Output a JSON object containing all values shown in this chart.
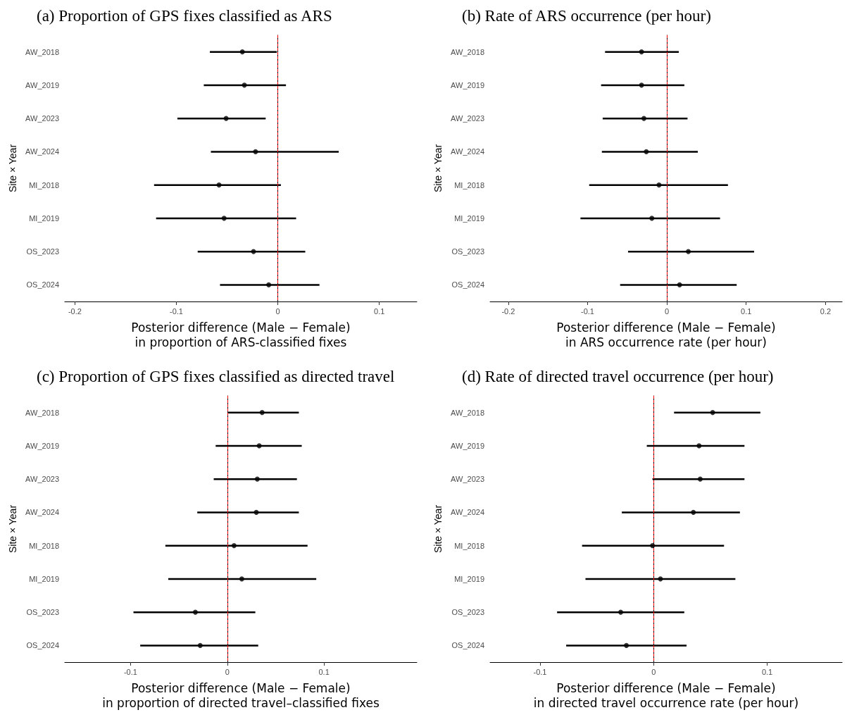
{
  "chart_data": [
    {
      "type": "scatter",
      "orientation": "horizontal",
      "title": "(a) Proportion of GPS fixes classified as ARS",
      "xlabel": "Posterior difference (Male − Female)\nin proportion of ARS-classified fixes",
      "ylabel": "Site × Year",
      "categories": [
        "AW_2018",
        "AW_2019",
        "AW_2023",
        "AW_2024",
        "MI_2018",
        "MI_2019",
        "OS_2023",
        "OS_2024"
      ],
      "series": [
        {
          "color": "#000000",
          "values": [
            -0.035,
            -0.033,
            -0.051,
            -0.022,
            -0.058,
            -0.053,
            -0.024,
            -0.009
          ],
          "errors": [
            [
              -0.067,
              -0.001
            ],
            [
              -0.073,
              0.008
            ],
            [
              -0.099,
              -0.012
            ],
            [
              -0.066,
              0.06
            ],
            [
              -0.122,
              0.003
            ],
            [
              -0.12,
              0.018
            ],
            [
              -0.079,
              0.027
            ],
            [
              -0.057,
              0.041
            ]
          ]
        }
      ],
      "xlim": [
        -0.21,
        0.137
      ],
      "xticks": [
        -0.2,
        -0.1,
        0,
        0.1
      ],
      "ref_lines": [
        {
          "axis": "x",
          "value": 0,
          "color": "#ff0000",
          "line_style": "dashed"
        }
      ],
      "marker": "circle",
      "grid": false
    },
    {
      "type": "scatter",
      "orientation": "horizontal",
      "title": "(b) Rate of ARS occurrence (per hour)",
      "xlabel": "Posterior difference (Male − Female)\nin ARS occurrence rate (per hour)",
      "ylabel": "Site × Year",
      "categories": [
        "AW_2018",
        "AW_2019",
        "AW_2023",
        "AW_2024",
        "MI_2018",
        "MI_2019",
        "OS_2023",
        "OS_2024"
      ],
      "series": [
        {
          "color": "#000000",
          "values": [
            -0.032,
            -0.032,
            -0.029,
            -0.026,
            -0.01,
            -0.019,
            0.027,
            0.016
          ],
          "errors": [
            [
              -0.078,
              0.015
            ],
            [
              -0.083,
              0.022
            ],
            [
              -0.081,
              0.026
            ],
            [
              -0.082,
              0.039
            ],
            [
              -0.098,
              0.077
            ],
            [
              -0.109,
              0.067
            ],
            [
              -0.049,
              0.11
            ],
            [
              -0.059,
              0.088
            ]
          ]
        }
      ],
      "xlim": [
        -0.223,
        0.221
      ],
      "xticks": [
        -0.2,
        -0.1,
        0,
        0.1,
        0.2
      ],
      "ref_lines": [
        {
          "axis": "x",
          "value": 0,
          "color": "#ff0000",
          "line_style": "dashed"
        }
      ],
      "marker": "circle",
      "grid": false
    },
    {
      "type": "scatter",
      "orientation": "horizontal",
      "title": "(c) Proportion of GPS fixes classified as directed travel",
      "xlabel": "Posterior difference (Male − Female)\nin proportion of directed travel–classified fixes",
      "ylabel": "Site × Year",
      "categories": [
        "AW_2018",
        "AW_2019",
        "AW_2023",
        "AW_2024",
        "MI_2018",
        "MI_2019",
        "OS_2023",
        "OS_2024"
      ],
      "series": [
        {
          "color": "#000000",
          "values": [
            0.036,
            0.033,
            0.031,
            0.03,
            0.007,
            0.015,
            -0.033,
            -0.028
          ],
          "errors": [
            [
              0.001,
              0.074
            ],
            [
              -0.012,
              0.077
            ],
            [
              -0.014,
              0.072
            ],
            [
              -0.031,
              0.074
            ],
            [
              -0.064,
              0.083
            ],
            [
              -0.061,
              0.092
            ],
            [
              -0.097,
              0.029
            ],
            [
              -0.09,
              0.032
            ]
          ]
        }
      ],
      "xlim": [
        -0.168,
        0.196
      ],
      "xticks": [
        -0.1,
        0,
        0.1
      ],
      "ref_lines": [
        {
          "axis": "x",
          "value": 0,
          "color": "#ff0000",
          "line_style": "dashed"
        }
      ],
      "marker": "circle",
      "grid": false
    },
    {
      "type": "scatter",
      "orientation": "horizontal",
      "title": "(d) Rate of directed travel occurrence (per hour)",
      "xlabel": "Posterior difference (Male − Female)\nin directed travel occurrence rate (per hour)",
      "ylabel": "Site × Year",
      "categories": [
        "AW_2018",
        "AW_2019",
        "AW_2023",
        "AW_2024",
        "MI_2018",
        "MI_2019",
        "OS_2023",
        "OS_2024"
      ],
      "series": [
        {
          "color": "#000000",
          "values": [
            0.052,
            0.04,
            0.041,
            0.035,
            -0.001,
            0.006,
            -0.029,
            -0.024
          ],
          "errors": [
            [
              0.018,
              0.094
            ],
            [
              -0.006,
              0.08
            ],
            [
              -0.001,
              0.08
            ],
            [
              -0.028,
              0.076
            ],
            [
              -0.063,
              0.062
            ],
            [
              -0.06,
              0.072
            ],
            [
              -0.085,
              0.027
            ],
            [
              -0.077,
              0.029
            ]
          ]
        }
      ],
      "xlim": [
        -0.144,
        0.166
      ],
      "xticks": [
        -0.1,
        0,
        0.1
      ],
      "ref_lines": [
        {
          "axis": "x",
          "value": 0,
          "color": "#ff0000",
          "line_style": "dashed"
        }
      ],
      "marker": "circle",
      "grid": false
    }
  ]
}
